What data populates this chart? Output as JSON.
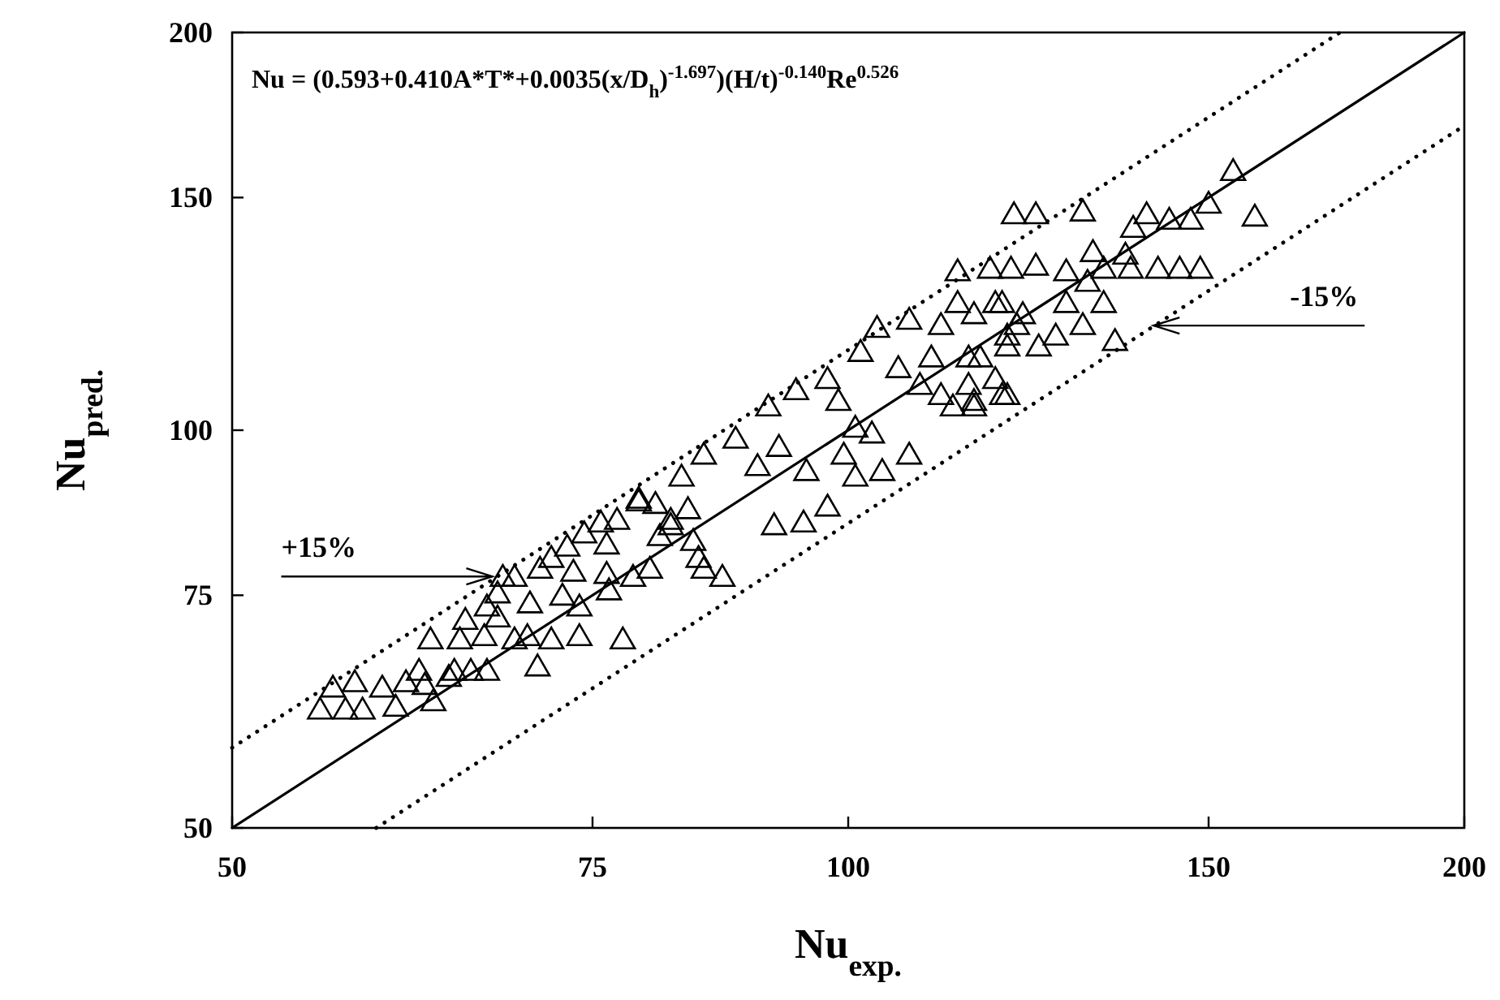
{
  "chart_data": {
    "type": "scatter",
    "xlabel": "Nu$_{exp.}$",
    "ylabel": "Nu$_{pred.}$",
    "log": "xy",
    "xlim": [
      50,
      200
    ],
    "ylim": [
      50,
      200
    ],
    "xticks": [
      50,
      75,
      100,
      150,
      200
    ],
    "yticks": [
      50,
      75,
      100,
      150,
      200
    ],
    "annotations": [
      "Nu = (0.593+0.410A*T*+0.0035(x/D$_{h}$)$^{-1.697}$)(H/t)$^{-0.140}$Re$^{0.526}$",
      {
        "text": "+15%",
        "x": 67,
        "y": 77.5
      },
      {
        "text": "-15%",
        "x": 141,
        "y": 120
      }
    ],
    "series": [
      {
        "type": "line",
        "color": "#000000",
        "line_style": "solid",
        "x": [
          50,
          200
        ],
        "values": [
          50,
          200
        ]
      },
      {
        "type": "line",
        "color": "#000000",
        "line_style": "dotted",
        "x": [
          50,
          173.9
        ],
        "values": [
          57.5,
          200
        ]
      },
      {
        "type": "line",
        "color": "#000000",
        "line_style": "dotted",
        "x": [
          58.8,
          200
        ],
        "values": [
          50,
          170
        ]
      },
      {
        "color": "#000000",
        "marker": "triangle",
        "x": [
          55.2,
          56.0,
          57.4,
          56.8,
          57.9,
          59.2,
          60.1,
          60.8,
          61.7,
          62.1,
          62.7,
          63.8,
          64.2,
          65.4,
          66.6,
          62.5,
          64.6,
          65.0,
          66.4,
          66.6,
          67.4,
          67.8,
          68.7,
          67.4,
          68.7,
          69.7,
          70.5,
          70.7,
          71.6,
          72.9,
          73.4,
          73.9,
          74.3,
          75.7,
          76.2,
          77.1,
          77.6,
          78.5,
          79.0,
          80.5,
          81.9,
          82.9,
          85.0,
          84.0,
          85.0,
          71.6,
          69.9,
          72.5,
          73.9,
          76.2,
          76.4,
          80.0,
          80.9,
          83.5,
          79.0,
          81.9,
          84.5,
          86.8,
          88.1,
          90.3,
          92.5,
          94.3,
          91.4,
          95.4,
          97.7,
          95.1,
          92.0,
          99.5,
          100.8,
          98.9,
          97.7,
          101.4,
          103.3,
          107.1,
          111.0,
          113.1,
          118.0,
          120.9,
          105.8,
          108.4,
          111.0,
          115.2,
          118.9,
          107.1,
          103.9,
          102.7,
          109.8,
          114.5,
          119.6,
          100.8,
          154.2,
          150.0,
          147.0,
          143.5,
          139.9,
          137.8,
          158.0,
          130.2,
          123.5,
          120.5,
          148.6,
          145.2,
          141.7,
          137.4,
          133.3,
          127.8,
          123.5,
          120.1,
          117.3,
          113.1,
          131.7,
          136.6,
          133.3,
          130.2,
          127.8,
          135.0,
          126.3,
          121.7,
          118.9,
          115.2,
          119.6,
          123.9,
          116.0,
          118.0,
          119.6,
          114.5,
          112.5,
          130.9,
          115.2
        ],
        "values": [
          61.5,
          63.9,
          64.5,
          61.5,
          61.5,
          63.9,
          61.8,
          64.5,
          65.8,
          64.2,
          62.4,
          65.1,
          65.8,
          65.8,
          65.8,
          69.5,
          69.5,
          71.9,
          69.9,
          73.6,
          75.3,
          77.5,
          77.5,
          72.2,
          69.5,
          69.9,
          66.3,
          78.6,
          80.1,
          81.7,
          78.2,
          73.6,
          83.6,
          85.2,
          82.0,
          85.6,
          69.5,
          77.5,
          88.8,
          88.0,
          85.6,
          92.3,
          95.9,
          82.5,
          78.6,
          69.5,
          74.0,
          75.0,
          69.9,
          77.9,
          75.7,
          78.6,
          83.2,
          87.2,
          88.4,
          84.8,
          80.1,
          77.5,
          98.6,
          94.0,
          97.2,
          107.3,
          104.3,
          93.2,
          87.6,
          85.2,
          84.8,
          95.9,
          100.5,
          105.3,
          109.4,
          114.7,
          119.6,
          121.3,
          120.2,
          124.9,
          124.9,
          120.2,
          111.5,
          108.3,
          106.4,
          105.3,
          106.4,
          95.9,
          93.2,
          99.5,
          113.6,
          113.6,
          115.8,
          92.3,
          157.2,
          148.5,
          144.4,
          144.4,
          145.8,
          142.4,
          145.2,
          146.5,
          145.8,
          145.8,
          132.6,
          132.6,
          132.6,
          132.6,
          132.6,
          132.0,
          133.3,
          132.6,
          132.6,
          132.0,
          136.5,
          135.9,
          124.9,
          120.2,
          124.9,
          116.9,
          118.0,
          122.5,
          124.9,
          122.5,
          118.0,
          115.8,
          113.6,
          109.4,
          106.4,
          108.3,
          104.3,
          129.6,
          104.3
        ]
      }
    ]
  }
}
